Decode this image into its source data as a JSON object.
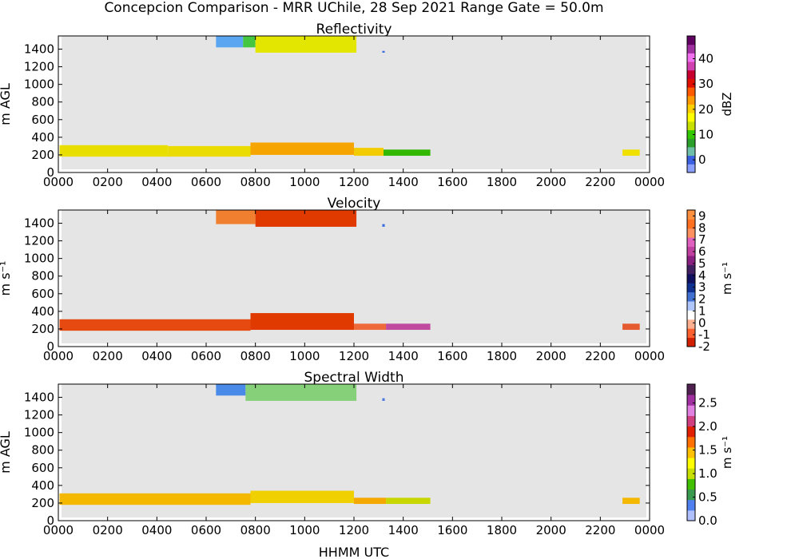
{
  "figure": {
    "title": "Concepcion Comparison - MRR UChile, 28 Sep 2021 Range Gate = 50.0m",
    "xlabel": "HHMM UTC"
  },
  "chart_data": [
    {
      "type": "heatmap",
      "title": "Reflectivity",
      "ylabel": "m AGL",
      "x_ticks": [
        "0000",
        "0200",
        "0400",
        "0600",
        "0800",
        "1000",
        "1200",
        "1400",
        "1600",
        "1800",
        "2000",
        "2200",
        "0000"
      ],
      "y_ticks": [
        "0",
        "200",
        "400",
        "600",
        "800",
        "1000",
        "1200",
        "1400"
      ],
      "xlim_hours": [
        0,
        24
      ],
      "ylim_m": [
        0,
        1550
      ],
      "colorbar": {
        "label": "dBZ",
        "range": [
          -5,
          49
        ],
        "ticks": [
          "0",
          "10",
          "20",
          "30",
          "40"
        ],
        "tick_values": [
          0,
          10,
          20,
          30,
          40
        ]
      },
      "echoes": [
        {
          "t_start": 0.05,
          "t_end": 4.45,
          "h_bottom": 180,
          "h_top": 310,
          "value": 18,
          "color": "#e8df00"
        },
        {
          "t_start": 4.45,
          "t_end": 7.8,
          "h_bottom": 180,
          "h_top": 300,
          "value": 19,
          "color": "#eadc00"
        },
        {
          "t_start": 7.8,
          "t_end": 12.0,
          "h_bottom": 200,
          "h_top": 340,
          "value": 24,
          "color": "#f6a500"
        },
        {
          "t_start": 12.0,
          "t_end": 13.2,
          "h_bottom": 190,
          "h_top": 280,
          "value": 20,
          "color": "#f2cc00"
        },
        {
          "t_start": 13.2,
          "t_end": 15.1,
          "h_bottom": 190,
          "h_top": 260,
          "value": 13,
          "color": "#33b800"
        },
        {
          "t_start": 22.9,
          "t_end": 23.6,
          "h_bottom": 190,
          "h_top": 260,
          "value": 18,
          "color": "#f0e000"
        },
        {
          "t_start": 6.4,
          "t_end": 7.5,
          "h_bottom": 1420,
          "h_top": 1550,
          "value": 5,
          "color": "#5aa6f0"
        },
        {
          "t_start": 7.5,
          "t_end": 8.0,
          "h_bottom": 1420,
          "h_top": 1550,
          "value": 10,
          "color": "#44c640"
        },
        {
          "t_start": 8.0,
          "t_end": 12.1,
          "h_bottom": 1360,
          "h_top": 1550,
          "value": 17,
          "color": "#e3e600"
        },
        {
          "t_start": 13.15,
          "t_end": 13.25,
          "h_bottom": 1360,
          "h_top": 1380,
          "value": 0,
          "color": "#3a6ee0"
        }
      ]
    },
    {
      "type": "heatmap",
      "title": "Velocity",
      "ylabel": "m s⁻¹",
      "x_ticks": [
        "0000",
        "0200",
        "0400",
        "0600",
        "0800",
        "1000",
        "1200",
        "1400",
        "1600",
        "1800",
        "2000",
        "2200",
        "0000"
      ],
      "y_ticks": [
        "0",
        "200",
        "400",
        "600",
        "800",
        "1000",
        "1200",
        "1400"
      ],
      "xlim_hours": [
        0,
        24
      ],
      "ylim_m": [
        0,
        1550
      ],
      "colorbar": {
        "label": "m s⁻¹",
        "range": [
          -2,
          9.5
        ],
        "ticks": [
          "-2",
          "-1",
          "0",
          "1",
          "2",
          "3",
          "4",
          "5",
          "6",
          "7",
          "8",
          "9"
        ],
        "tick_values": [
          -2,
          -1,
          0,
          1,
          2,
          3,
          4,
          5,
          6,
          7,
          8,
          9
        ]
      },
      "echoes": [
        {
          "t_start": 0.05,
          "t_end": 7.8,
          "h_bottom": 180,
          "h_top": 310,
          "value": -1.8,
          "color": "#e64a10"
        },
        {
          "t_start": 7.8,
          "t_end": 12.0,
          "h_bottom": 190,
          "h_top": 380,
          "value": -1.9,
          "color": "#e03a00"
        },
        {
          "t_start": 12.0,
          "t_end": 13.3,
          "h_bottom": 190,
          "h_top": 260,
          "value": -1.6,
          "color": "#ee6a3a"
        },
        {
          "t_start": 13.3,
          "t_end": 15.1,
          "h_bottom": 190,
          "h_top": 260,
          "value": 5.0,
          "color": "#c04aa0"
        },
        {
          "t_start": 22.9,
          "t_end": 23.6,
          "h_bottom": 190,
          "h_top": 260,
          "value": -1.5,
          "color": "#e65a30"
        },
        {
          "t_start": 6.4,
          "t_end": 8.0,
          "h_bottom": 1390,
          "h_top": 1550,
          "value": 8.5,
          "color": "#f08030"
        },
        {
          "t_start": 8.0,
          "t_end": 12.1,
          "h_bottom": 1360,
          "h_top": 1550,
          "value": -1.9,
          "color": "#e03a00"
        },
        {
          "t_start": 13.15,
          "t_end": 13.25,
          "h_bottom": 1360,
          "h_top": 1390,
          "value": 1.5,
          "color": "#3a6ee0"
        }
      ]
    },
    {
      "type": "heatmap",
      "title": "Spectral Width",
      "ylabel": "m AGL",
      "x_ticks": [
        "0000",
        "0200",
        "0400",
        "0600",
        "0800",
        "1000",
        "1200",
        "1400",
        "1600",
        "1800",
        "2000",
        "2200",
        "0000"
      ],
      "y_ticks": [
        "0",
        "200",
        "400",
        "600",
        "800",
        "1000",
        "1200",
        "1400"
      ],
      "xlim_hours": [
        0,
        24
      ],
      "ylim_m": [
        0,
        1550
      ],
      "colorbar": {
        "label": "m s⁻¹",
        "range": [
          0,
          2.9
        ],
        "ticks": [
          "0.0",
          "0.5",
          "1.0",
          "1.5",
          "2.0",
          "2.5"
        ],
        "tick_values": [
          0,
          0.5,
          1.0,
          1.5,
          2.0,
          2.5
        ]
      },
      "echoes": [
        {
          "t_start": 0.05,
          "t_end": 7.8,
          "h_bottom": 180,
          "h_top": 310,
          "value": 1.7,
          "color": "#f4b800"
        },
        {
          "t_start": 7.8,
          "t_end": 12.0,
          "h_bottom": 200,
          "h_top": 340,
          "value": 1.6,
          "color": "#f0d000"
        },
        {
          "t_start": 12.0,
          "t_end": 13.3,
          "h_bottom": 190,
          "h_top": 260,
          "value": 1.8,
          "color": "#f4a800"
        },
        {
          "t_start": 13.3,
          "t_end": 15.1,
          "h_bottom": 190,
          "h_top": 260,
          "value": 1.3,
          "color": "#c8d600"
        },
        {
          "t_start": 22.9,
          "t_end": 23.6,
          "h_bottom": 190,
          "h_top": 260,
          "value": 1.7,
          "color": "#f4b800"
        },
        {
          "t_start": 6.4,
          "t_end": 7.6,
          "h_bottom": 1420,
          "h_top": 1550,
          "value": 0.5,
          "color": "#4a8ae8"
        },
        {
          "t_start": 7.6,
          "t_end": 12.1,
          "h_bottom": 1360,
          "h_top": 1550,
          "value": 0.9,
          "color": "#86d07a"
        },
        {
          "t_start": 13.15,
          "t_end": 13.25,
          "h_bottom": 1360,
          "h_top": 1390,
          "value": 0.4,
          "color": "#4a7ae0"
        }
      ]
    }
  ],
  "colorbar_palettes": {
    "reflectivity": [
      "#8a9fff",
      "#3a5fe0",
      "#6fbfa8",
      "#2aa02a",
      "#33c800",
      "#c8e000",
      "#ffff00",
      "#ffd000",
      "#ff9a00",
      "#ff5a00",
      "#e01000",
      "#c80030",
      "#d040b0",
      "#f070f0",
      "#a030a0",
      "#600060"
    ],
    "velocity": [
      "#d02000",
      "#ff6030",
      "#ffb090",
      "#ffffff",
      "#b0c8ff",
      "#4070d0",
      "#103090",
      "#101060",
      "#402060",
      "#8a2080",
      "#c040a0",
      "#e060c0",
      "#ff9060",
      "#ff7020",
      "#ff9040"
    ],
    "spectral_width": [
      "#b0c0ff",
      "#5080f0",
      "#3a9a50",
      "#40c000",
      "#c8e000",
      "#ffff00",
      "#ffc000",
      "#ff7000",
      "#e02000",
      "#d04080",
      "#e080e0",
      "#a030a0",
      "#502050"
    ]
  }
}
